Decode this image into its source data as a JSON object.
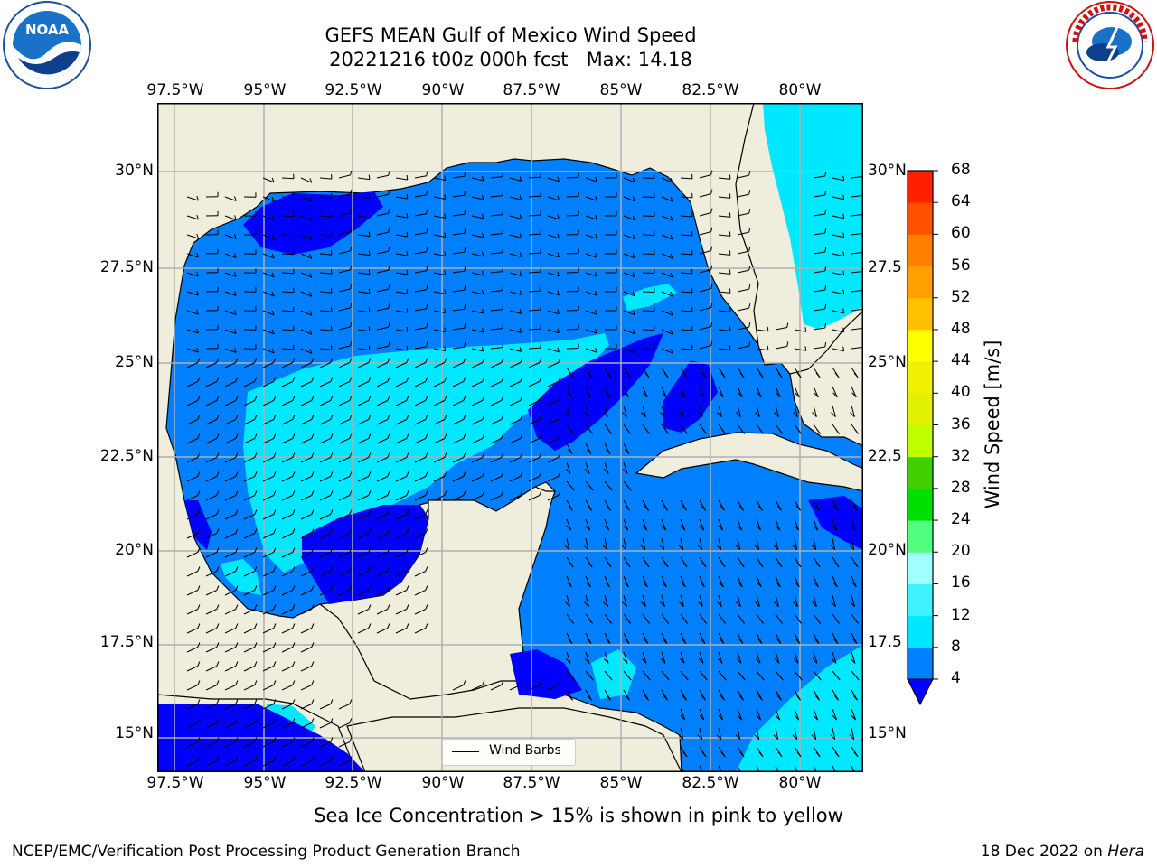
{
  "header": {
    "title_line1": "GEFS MEAN Gulf of Mexico Wind Speed",
    "title_line2": "20221216 t00z 000h fcst   Max: 14.18"
  },
  "logos": {
    "left": {
      "name": "noaa-logo",
      "text": "NOAA",
      "ring_text": "NATIONAL OCEANIC AND ATMOSPHERIC ADMINISTRATION · U.S. DEPARTMENT OF COMMERCE"
    },
    "right": {
      "name": "nws-logo",
      "ring_text": "NATIONAL WEATHER SERVICE"
    }
  },
  "map": {
    "lon_labels": [
      "97.5°W",
      "95°W",
      "92.5°W",
      "90°W",
      "87.5°W",
      "85°W",
      "82.5°W",
      "80°W"
    ],
    "lat_labels_left": [
      "30°N",
      "27.5°N",
      "25°N",
      "22.5°N",
      "20°N",
      "17.5°N",
      "15°N"
    ],
    "lat_labels_right": [
      "30°N",
      "27.5",
      "25°N",
      "22.5",
      "20°N",
      "17.5",
      "15°N"
    ],
    "lon_range": [
      -98,
      -78.2
    ],
    "lat_range": [
      14,
      31.6
    ],
    "land_color": "#efeddc",
    "grid_color": "#b0b0b0"
  },
  "colorbar": {
    "label": "Wind Speed [m/s]",
    "ticks": [
      "68",
      "64",
      "60",
      "56",
      "52",
      "48",
      "44",
      "40",
      "36",
      "32",
      "28",
      "24",
      "20",
      "16",
      "12",
      "8",
      "4"
    ],
    "levels": [
      4,
      8,
      12,
      16,
      20,
      24,
      28,
      32,
      36,
      40,
      44,
      48,
      52,
      56,
      60,
      64,
      68
    ],
    "colors": [
      "#0080ff",
      "#00e8ff",
      "#40f2ff",
      "#a0ffff",
      "#50ff80",
      "#00e000",
      "#40d000",
      "#c0ff00",
      "#e0f000",
      "#f0f000",
      "#ffff00",
      "#ffc000",
      "#ffa000",
      "#ff8000",
      "#ff5000",
      "#ff2000"
    ],
    "under_color": "#0000ff"
  },
  "legend": {
    "label": "Wind Barbs"
  },
  "note": "Sea Ice Concentration > 15% is shown in pink to yellow",
  "footer": {
    "left": "NCEP/EMC/Verification Post Processing Product Generation Branch",
    "right_date": "18 Dec 2022 on ",
    "right_machine": "Hera"
  }
}
